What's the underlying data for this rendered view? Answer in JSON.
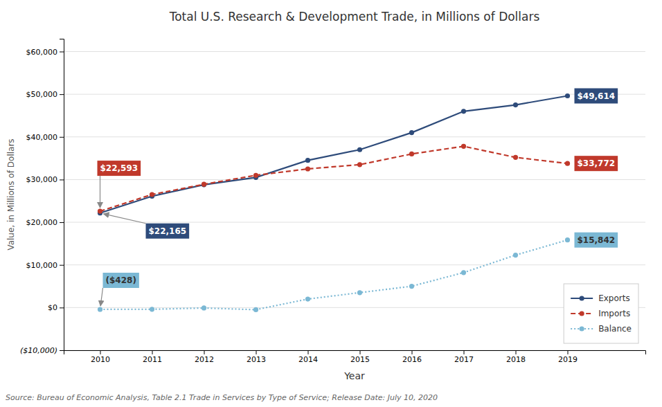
{
  "chart_data": {
    "type": "line",
    "title": "Total U.S. Research & Development Trade, in Millions of Dollars",
    "xlabel": "Year",
    "ylabel": "Value, in Millions of Dollars",
    "source": "Source: Bureau of Economic Analysis, Table 2.1 Trade in Services by Type of Service; Release Date: July 10, 2020",
    "x": [
      2010,
      2011,
      2012,
      2013,
      2014,
      2015,
      2016,
      2017,
      2018,
      2019
    ],
    "series": [
      {
        "name": "Exports",
        "color": "#2E4B7A",
        "marker": "circle",
        "line_style": "solid",
        "values": [
          22165,
          26100,
          28800,
          30500,
          34500,
          37000,
          41000,
          46000,
          47500,
          49614
        ]
      },
      {
        "name": "Imports",
        "color": "#C0392B",
        "marker": "circle",
        "line_style": "dashed",
        "values": [
          22593,
          26500,
          28900,
          31000,
          32500,
          33500,
          36000,
          37800,
          35200,
          33772
        ]
      },
      {
        "name": "Balance",
        "color": "#7BB8D4",
        "marker": "circle",
        "line_style": "dotted",
        "values": [
          -428,
          -400,
          -100,
          -500,
          2000,
          3500,
          5000,
          8200,
          12300,
          15842
        ]
      }
    ],
    "xlim": [
      2009.3,
      2020.5
    ],
    "xticks": [
      2010,
      2011,
      2012,
      2013,
      2014,
      2015,
      2016,
      2017,
      2018,
      2019
    ],
    "ylim": [
      -10000,
      63000
    ],
    "yticks": [
      {
        "value": -10000,
        "label": "($10,000)"
      },
      {
        "value": 0,
        "label": "$0"
      },
      {
        "value": 10000,
        "label": "$10,000"
      },
      {
        "value": 20000,
        "label": "$20,000"
      },
      {
        "value": 30000,
        "label": "$30,000"
      },
      {
        "value": 40000,
        "label": "$40,000"
      },
      {
        "value": 50000,
        "label": "$50,000"
      },
      {
        "value": 60000,
        "label": "$60,000"
      }
    ],
    "grid": true,
    "legend": "lower-right",
    "annotations": [
      {
        "text": "$22,593",
        "x": 2010,
        "y": 22593,
        "color": "#C0392B"
      },
      {
        "text": "$22,165",
        "x": 2010,
        "y": 22165,
        "color": "#2E4B7A"
      },
      {
        "text": "($428)",
        "x": 2010,
        "y": -428,
        "color": "#7BB8D4"
      },
      {
        "text": "$49,614",
        "x": 2019,
        "y": 49614,
        "color": "#2E4B7A"
      },
      {
        "text": "$33,772",
        "x": 2019,
        "y": 33772,
        "color": "#C0392B"
      },
      {
        "text": "$15,842",
        "x": 2019,
        "y": 15842,
        "color": "#7BB8D4"
      }
    ]
  }
}
